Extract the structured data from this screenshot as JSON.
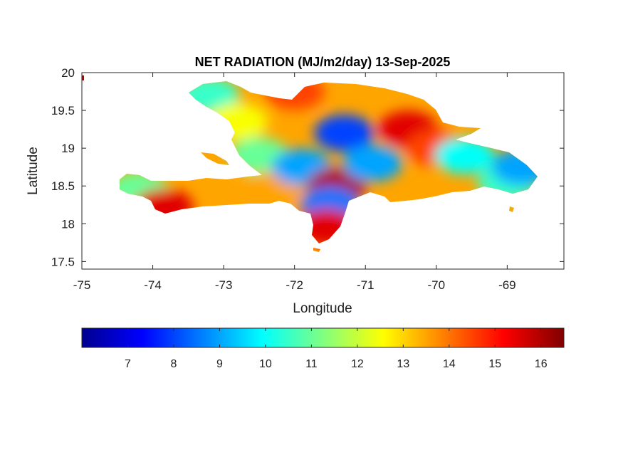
{
  "chart_data": {
    "type": "heatmap",
    "title": "NET RADIATION (MJ/m2/day) 13-Sep-2025",
    "xlabel": "Longitude",
    "ylabel": "Latitude",
    "xlim": [
      -75,
      -68.2
    ],
    "ylim": [
      17.4,
      20
    ],
    "x_ticks": [
      -75,
      -74,
      -73,
      -72,
      -71,
      -70,
      -69
    ],
    "x_tick_labels": [
      "-75",
      "-74",
      "-73",
      "-72",
      "-71",
      "-70",
      "-69"
    ],
    "y_ticks": [
      17.5,
      18,
      18.5,
      19,
      19.5,
      20
    ],
    "y_tick_labels": [
      "17.5",
      "18",
      "18.5",
      "19",
      "19.5",
      "20"
    ],
    "colormap": "jet",
    "colormap_stops": [
      "#00008f",
      "#0000ff",
      "#0080ff",
      "#00ffff",
      "#80ff80",
      "#ffff00",
      "#ff8000",
      "#ff0000",
      "#800000"
    ],
    "color_range": [
      6,
      16.5
    ],
    "colorbar_ticks": [
      7,
      8,
      9,
      10,
      11,
      12,
      13,
      14,
      15,
      16
    ],
    "colorbar_tick_labels": [
      "7",
      "8",
      "9",
      "10",
      "11",
      "12",
      "13",
      "14",
      "15",
      "16"
    ],
    "colorbar_position": "bottom",
    "grid": false,
    "regions": [
      {
        "lon": -74.2,
        "lat": 18.45,
        "value": 11
      },
      {
        "lon": -73.85,
        "lat": 18.22,
        "value": 15.5
      },
      {
        "lon": -73.2,
        "lat": 19.7,
        "value": 10.5
      },
      {
        "lon": -72.8,
        "lat": 19.35,
        "value": 12.5
      },
      {
        "lon": -72.5,
        "lat": 18.9,
        "value": 11
      },
      {
        "lon": -72.3,
        "lat": 18.45,
        "value": 13.5
      },
      {
        "lon": -72.0,
        "lat": 19.75,
        "value": 14.5
      },
      {
        "lon": -71.9,
        "lat": 18.75,
        "value": 9
      },
      {
        "lon": -71.3,
        "lat": 19.2,
        "value": 8
      },
      {
        "lon": -71.4,
        "lat": 18.5,
        "value": 16
      },
      {
        "lon": -71.5,
        "lat": 18.25,
        "value": 8.5
      },
      {
        "lon": -71.55,
        "lat": 17.95,
        "value": 15.5
      },
      {
        "lon": -70.9,
        "lat": 18.8,
        "value": 9
      },
      {
        "lon": -70.4,
        "lat": 19.25,
        "value": 15.5
      },
      {
        "lon": -70.0,
        "lat": 19.0,
        "value": 14.5
      },
      {
        "lon": -69.6,
        "lat": 18.9,
        "value": 10
      },
      {
        "lon": -69.0,
        "lat": 18.55,
        "value": 10.5
      },
      {
        "lon": -68.8,
        "lat": 18.75,
        "value": 9
      }
    ]
  }
}
